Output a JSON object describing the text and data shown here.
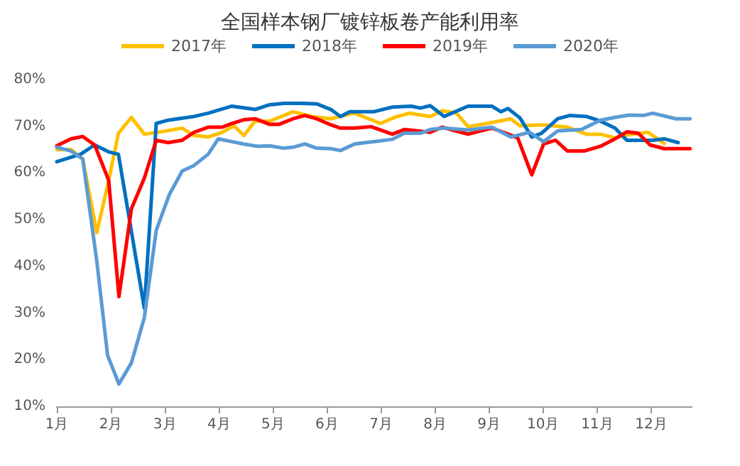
{
  "chart_data": {
    "type": "line",
    "title": "全国样本钢厂镀锌板卷产能利用率",
    "legend": "top",
    "grid": false,
    "marker": "none",
    "line_style": "solid",
    "xlim": [
      1,
      12.75
    ],
    "xticks": [
      {
        "value": 1,
        "label": "1月"
      },
      {
        "value": 2,
        "label": "2月"
      },
      {
        "value": 3,
        "label": "3月"
      },
      {
        "value": 4,
        "label": "4月"
      },
      {
        "value": 5,
        "label": "5月"
      },
      {
        "value": 6,
        "label": "6月"
      },
      {
        "value": 7,
        "label": "7月"
      },
      {
        "value": 8,
        "label": "8月"
      },
      {
        "value": 9,
        "label": "9月"
      },
      {
        "value": 10,
        "label": "10月"
      },
      {
        "value": 11,
        "label": "11月"
      },
      {
        "value": 12,
        "label": "12月"
      }
    ],
    "ylim": [
      10,
      80
    ],
    "yticks": [
      {
        "value": 10,
        "label": "10%"
      },
      {
        "value": 20,
        "label": "20%"
      },
      {
        "value": 30,
        "label": "30%"
      },
      {
        "value": 40,
        "label": "40%"
      },
      {
        "value": 50,
        "label": "50%"
      },
      {
        "value": 60,
        "label": "60%"
      },
      {
        "value": 70,
        "label": "70%"
      },
      {
        "value": 80,
        "label": "80%"
      }
    ],
    "series": [
      {
        "name": "2017年",
        "color": "#ffc000",
        "x": [
          1,
          1.26,
          1.48,
          1.74,
          1.96,
          2.14,
          2.38,
          2.62,
          2.92,
          3.32,
          3.54,
          3.8,
          4.06,
          4.28,
          4.46,
          4.67,
          4.94,
          5.37,
          5.72,
          6.07,
          6.42,
          6.51,
          6.99,
          7.25,
          7.52,
          7.91,
          8.13,
          8.39,
          8.61,
          9.05,
          9.4,
          9.57,
          10.01,
          10.45,
          10.8,
          11.06,
          11.33,
          11.59,
          11.94,
          12.24
        ],
        "values": [
          65.0,
          65.0,
          63.0,
          47.2,
          58.4,
          68.5,
          71.9,
          68.3,
          68.8,
          69.6,
          68.0,
          67.7,
          68.7,
          70.1,
          68.0,
          71.1,
          71.1,
          73.1,
          72.1,
          71.6,
          72.6,
          72.8,
          70.6,
          71.9,
          72.8,
          72.1,
          73.3,
          72.9,
          69.9,
          70.8,
          71.6,
          70.1,
          70.3,
          69.8,
          68.3,
          68.3,
          67.5,
          68.2,
          68.7,
          66.3
        ]
      },
      {
        "name": "2018年",
        "color": "#0070c0",
        "x": [
          1,
          1.44,
          1.7,
          1.96,
          2.14,
          2.62,
          2.84,
          3.06,
          3.54,
          3.8,
          4.24,
          4.67,
          4.94,
          5.2,
          5.55,
          5.81,
          6.07,
          6.25,
          6.42,
          6.51,
          6.86,
          7.21,
          7.56,
          7.73,
          7.91,
          8.17,
          8.61,
          9.05,
          9.22,
          9.35,
          9.57,
          9.79,
          9.97,
          10.27,
          10.49,
          10.8,
          11.06,
          11.33,
          11.55,
          11.76,
          12.03,
          12.24,
          12.5
        ],
        "values": [
          62.4,
          64.0,
          66.0,
          64.5,
          64.0,
          31.0,
          70.6,
          71.3,
          72.1,
          72.8,
          74.3,
          73.6,
          74.6,
          74.9,
          74.9,
          74.8,
          73.6,
          72.1,
          73.1,
          73.1,
          73.1,
          74.1,
          74.3,
          73.9,
          74.4,
          72.1,
          74.3,
          74.3,
          73.1,
          73.8,
          71.8,
          67.7,
          68.5,
          71.6,
          72.3,
          72.1,
          71.1,
          69.6,
          67.0,
          67.0,
          67.0,
          67.3,
          66.5
        ]
      },
      {
        "name": "2019年",
        "color": "#ff0000",
        "x": [
          1,
          1.26,
          1.48,
          1.7,
          1.96,
          2.15,
          2.38,
          2.62,
          2.84,
          3.06,
          3.32,
          3.54,
          3.8,
          4.06,
          4.24,
          4.46,
          4.67,
          4.94,
          5.11,
          5.37,
          5.59,
          5.81,
          6.07,
          6.25,
          6.51,
          6.82,
          7.21,
          7.43,
          7.91,
          8.13,
          8.61,
          9.05,
          9.27,
          9.53,
          9.79,
          10.01,
          10.23,
          10.45,
          10.76,
          11.06,
          11.33,
          11.55,
          11.76,
          11.98,
          12.24,
          12.72
        ],
        "values": [
          65.8,
          67.3,
          67.8,
          66.0,
          58.4,
          33.5,
          52.3,
          58.9,
          67.0,
          66.5,
          67.0,
          68.7,
          69.8,
          69.8,
          70.6,
          71.4,
          71.6,
          70.4,
          70.4,
          71.6,
          72.3,
          71.6,
          70.3,
          69.6,
          69.6,
          69.9,
          68.3,
          69.3,
          68.7,
          69.8,
          68.3,
          69.6,
          68.7,
          67.5,
          59.6,
          66.2,
          67.0,
          64.7,
          64.7,
          65.7,
          67.3,
          68.8,
          68.5,
          66.0,
          65.2,
          65.2
        ]
      },
      {
        "name": "2020年",
        "color": "#5b9bd5",
        "x": [
          1,
          1.26,
          1.48,
          1.74,
          1.94,
          2.15,
          2.38,
          2.62,
          2.84,
          3.08,
          3.32,
          3.54,
          3.8,
          3.99,
          4.24,
          4.46,
          4.72,
          4.94,
          5.2,
          5.37,
          5.59,
          5.81,
          6.07,
          6.25,
          6.51,
          6.86,
          7.21,
          7.43,
          7.73,
          7.91,
          8.17,
          8.61,
          9.05,
          9.4,
          9.75,
          10.01,
          10.27,
          10.71,
          11.06,
          11.33,
          11.59,
          11.85,
          12.03,
          12.46,
          12.72
        ],
        "values": [
          65.5,
          64.7,
          63.0,
          41.1,
          20.9,
          14.8,
          19.3,
          29.0,
          47.7,
          55.3,
          60.4,
          61.6,
          64.0,
          67.3,
          66.7,
          66.2,
          65.7,
          65.8,
          65.3,
          65.5,
          66.2,
          65.3,
          65.2,
          64.8,
          66.2,
          66.7,
          67.2,
          68.5,
          68.5,
          69.3,
          69.6,
          69.2,
          69.8,
          67.7,
          68.7,
          66.7,
          69.0,
          69.3,
          71.3,
          71.9,
          72.4,
          72.3,
          72.8,
          71.6,
          71.6
        ]
      }
    ]
  }
}
